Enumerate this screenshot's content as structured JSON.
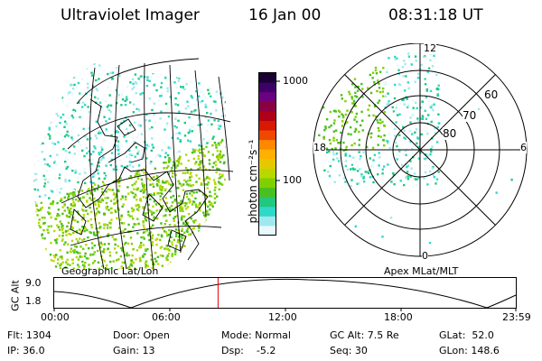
{
  "header": {
    "title": "Ultraviolet Imager",
    "date": "16 Jan 00",
    "time": "08:31:18 UT"
  },
  "left_panel": {
    "caption": "Geographic Lat/Lon"
  },
  "right_panel": {
    "caption": "Apex MLat/MLT",
    "mlt_labels": [
      "12",
      "18",
      "6",
      "0"
    ],
    "mlat_labels": [
      "60",
      "70",
      "80"
    ]
  },
  "colorbar": {
    "unit": "photon cm⁻²s⁻¹",
    "tick_1000": "1000",
    "tick_100": "100",
    "colors": [
      "#1a0033",
      "#3d0066",
      "#6b0080",
      "#8b0040",
      "#b00018",
      "#d81800",
      "#f04800",
      "#ff8800",
      "#ffb000",
      "#e6c800",
      "#b8d800",
      "#80d000",
      "#48c020",
      "#20c880",
      "#30d8c8",
      "#a0e8f0",
      "#e8f8fc"
    ]
  },
  "timeline": {
    "axis_label": "GC Alt",
    "y_ticks": [
      "9.0",
      "1.8"
    ],
    "x_ticks": [
      "00:00",
      "06:00",
      "12:00",
      "18:00",
      "23:59"
    ],
    "cursor_fraction": 0.355,
    "marker_color": "#e00000"
  },
  "footer": {
    "row1": [
      "Flt: 1304",
      "Door: Open",
      "Mode: Normal",
      "GC Alt: 7.5 Re",
      "GLat:  52.0"
    ],
    "row2": [
      "IP: 36.0",
      "Gain: 13",
      "Dsp:    -5.2",
      "Seq: 30",
      "GLon: 148.6"
    ]
  }
}
